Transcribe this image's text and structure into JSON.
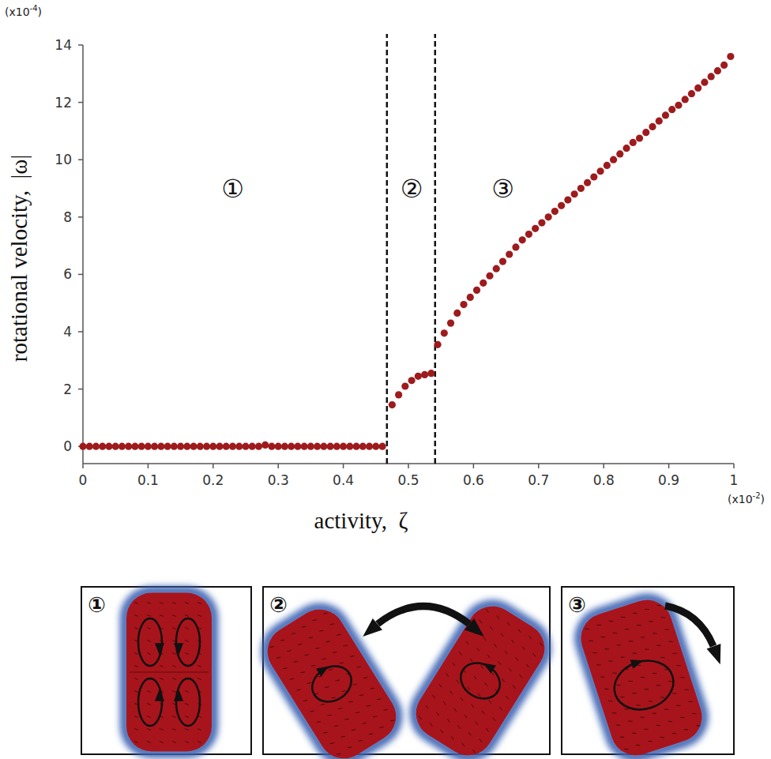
{
  "chart_data": {
    "type": "scatter",
    "xlabel": "activity,  ζ",
    "ylabel": "rotational velocity,  |ω|",
    "x_multiplier": [
      "(x10",
      "-2",
      ")"
    ],
    "y_multiplier": [
      "(x10",
      "-4",
      ")"
    ],
    "color": "#9e1b1d",
    "marker": "circle",
    "x": [
      0,
      0.01,
      0.02,
      0.03,
      0.04,
      0.05,
      0.06,
      0.07,
      0.08,
      0.09,
      0.1,
      0.11,
      0.12,
      0.13,
      0.14,
      0.15,
      0.16,
      0.17,
      0.18,
      0.19,
      0.2,
      0.21,
      0.22,
      0.23,
      0.24,
      0.25,
      0.26,
      0.27,
      0.28,
      0.29,
      0.3,
      0.31,
      0.32,
      0.33,
      0.34,
      0.35,
      0.36,
      0.37,
      0.38,
      0.39,
      0.4,
      0.41,
      0.42,
      0.43,
      0.44,
      0.45,
      0.46,
      0.475,
      0.485,
      0.495,
      0.505,
      0.515,
      0.525,
      0.535,
      0.545,
      0.555,
      0.565,
      0.575,
      0.585,
      0.595,
      0.605,
      0.615,
      0.625,
      0.635,
      0.645,
      0.655,
      0.665,
      0.675,
      0.685,
      0.695,
      0.705,
      0.715,
      0.725,
      0.735,
      0.745,
      0.755,
      0.765,
      0.775,
      0.785,
      0.795,
      0.805,
      0.815,
      0.825,
      0.835,
      0.845,
      0.855,
      0.865,
      0.875,
      0.885,
      0.895,
      0.905,
      0.915,
      0.925,
      0.935,
      0.945,
      0.955,
      0.965,
      0.975,
      0.985,
      0.995
    ],
    "values": [
      0,
      0,
      0,
      0,
      0,
      0,
      0,
      0,
      0,
      0,
      0,
      0,
      0,
      0,
      0,
      0,
      0,
      0,
      0,
      0,
      0,
      0,
      0,
      0,
      0,
      0,
      0,
      0,
      0.05,
      0,
      0,
      0,
      0,
      0,
      0,
      0,
      0,
      0,
      0,
      0,
      0,
      0,
      0,
      0,
      0,
      0,
      0,
      1.45,
      1.8,
      2.1,
      2.3,
      2.45,
      2.5,
      2.55,
      3.55,
      3.95,
      4.3,
      4.65,
      4.95,
      5.2,
      5.45,
      5.7,
      5.95,
      6.2,
      6.45,
      6.7,
      6.95,
      7.2,
      7.4,
      7.6,
      7.8,
      8.0,
      8.2,
      8.4,
      8.6,
      8.8,
      9.0,
      9.2,
      9.4,
      9.6,
      9.8,
      10.0,
      10.2,
      10.4,
      10.6,
      10.75,
      10.95,
      11.15,
      11.35,
      11.55,
      11.75,
      11.9,
      12.1,
      12.3,
      12.5,
      12.7,
      12.9,
      13.1,
      13.3,
      13.6
    ],
    "xlim": [
      0,
      1
    ],
    "ylim": [
      -0.6,
      14
    ],
    "xticks": [
      0,
      0.1,
      0.2,
      0.3,
      0.4,
      0.5,
      0.6,
      0.7,
      0.8,
      0.9,
      1
    ],
    "yticks": [
      0,
      2,
      4,
      6,
      8,
      10,
      12,
      14
    ],
    "grid": false,
    "boundaries": [
      0.467,
      0.541
    ],
    "annotations": [
      {
        "text": "①",
        "x": 0.23,
        "y": 9
      },
      {
        "text": "②",
        "x": 0.505,
        "y": 9
      },
      {
        "text": "③",
        "x": 0.645,
        "y": 9
      }
    ]
  },
  "panels": {
    "labels": [
      "①",
      "②",
      "③"
    ]
  }
}
